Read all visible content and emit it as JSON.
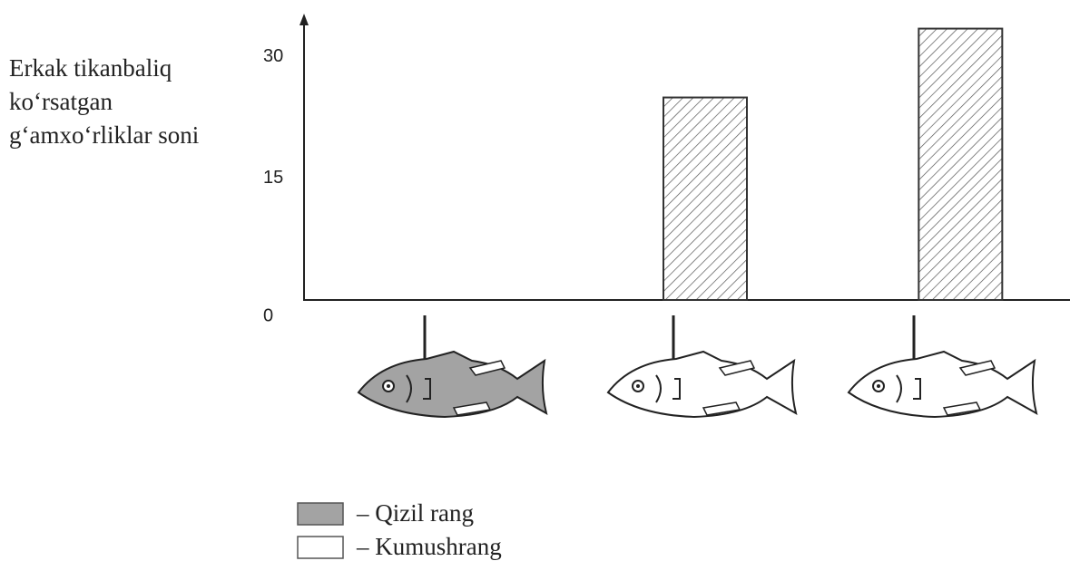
{
  "chart_data": {
    "type": "bar",
    "ylabel": [
      "Erkak tikanbaliq",
      "ko‘rsatgan",
      "g‘amxo‘rliklar soni"
    ],
    "categories": [
      null,
      null,
      null
    ],
    "values": [
      0,
      25,
      33.5
    ],
    "color": "#333333",
    "ylim": [
      0,
      35
    ],
    "yticks": [
      0,
      15,
      30
    ],
    "legend": [
      {
        "label": "– Qizil rang",
        "color": "#a3a3a3"
      },
      {
        "label": "– Kumushrang",
        "color": "#ffffff"
      }
    ]
  }
}
